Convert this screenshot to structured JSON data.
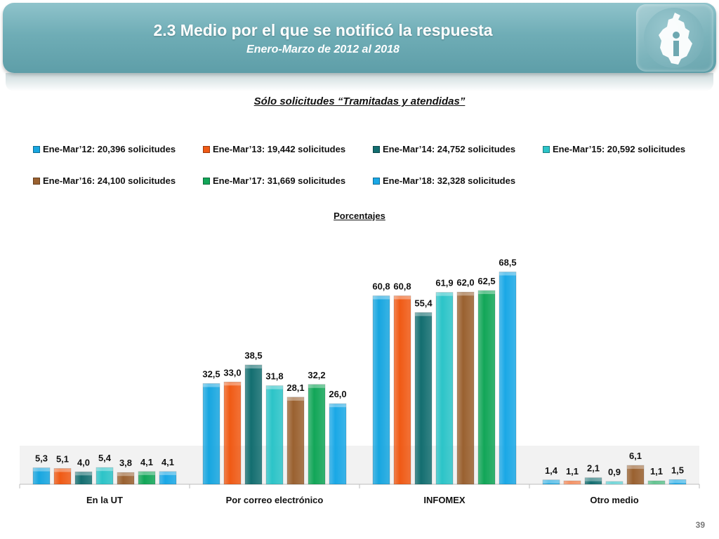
{
  "header": {
    "title": "2.3 Medio por el que se notificó la respuesta",
    "subtitle": "Enero-Marzo de 2012 al 2018"
  },
  "logo": {
    "icon": "cdmx-map-logo-icon"
  },
  "chart_subtitle": "Sólo solicitudes “Tramitadas y atendidas”",
  "units_label": "Porcentajes",
  "page_number": "39",
  "chart_data": {
    "type": "bar",
    "title": "Sólo solicitudes “Tramitadas y atendidas”",
    "ylabel": "Porcentajes",
    "xlabel": "",
    "ylim": [
      0,
      72
    ],
    "grid": false,
    "legend_position": "top",
    "categories": [
      "En la UT",
      "Por correo electrónico",
      "INFOMEX",
      "Otro medio"
    ],
    "series": [
      {
        "name": "Ene-Mar’12: 20,396 solicitudes",
        "color": "#17a6e0",
        "values": [
          5.3,
          32.5,
          60.8,
          1.4
        ],
        "labels": [
          "5,3",
          "32,5",
          "60,8",
          "1,4"
        ]
      },
      {
        "name": "Ene-Mar’13: 19,442 solicitudes",
        "color": "#f05a15",
        "values": [
          5.1,
          33.0,
          60.8,
          1.1
        ],
        "labels": [
          "5,1",
          "33,0",
          "60,8",
          "1,1"
        ]
      },
      {
        "name": "Ene-Mar’14: 24,752 solicitudes",
        "color": "#136e70",
        "values": [
          4.0,
          38.5,
          55.4,
          2.1
        ],
        "labels": [
          "4,0",
          "38,5",
          "55,4",
          "2,1"
        ]
      },
      {
        "name": "Ene-Mar’15: 20,592 solicitudes",
        "color": "#2cc4c8",
        "values": [
          5.4,
          31.8,
          61.9,
          0.9
        ],
        "labels": [
          "5,4",
          "31,8",
          "61,9",
          "0,9"
        ]
      },
      {
        "name": "Ene-Mar’16: 24,100 solicitudes",
        "color": "#9a6130",
        "values": [
          3.8,
          28.1,
          62.0,
          6.1
        ],
        "labels": [
          "3,8",
          "28,1",
          "62,0",
          "6,1"
        ]
      },
      {
        "name": "Ene-Mar’17: 31,669 solicitudes",
        "color": "#12a658",
        "values": [
          4.1,
          32.2,
          62.5,
          1.1
        ],
        "labels": [
          "4,1",
          "32,2",
          "62,5",
          "1,1"
        ]
      },
      {
        "name": "Ene-Mar’18: 32,328 solicitudes",
        "color": "#1aa8e6",
        "values": [
          4.1,
          26.0,
          68.5,
          1.5
        ],
        "labels": [
          "4,1",
          "26,0",
          "68,5",
          "1,5"
        ]
      }
    ]
  }
}
